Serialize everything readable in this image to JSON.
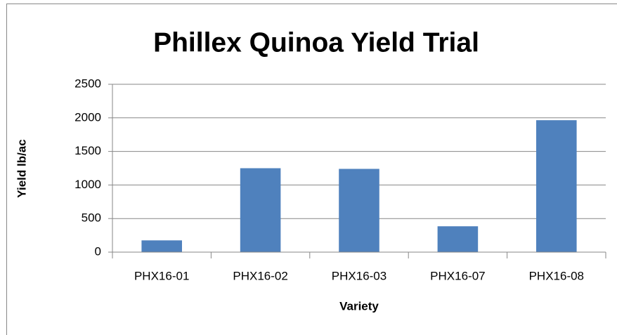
{
  "chart_data": {
    "type": "bar",
    "title": "Phillex Quinoa Yield Trial",
    "x_label": "Variety",
    "y_label": "Yield lb/ac",
    "categories": [
      "PHX16-01",
      "PHX16-02",
      "PHX16-03",
      "PHX16-07",
      "PHX16-08"
    ],
    "values": [
      175,
      1250,
      1240,
      385,
      1965
    ],
    "color": "#4f81bd",
    "ylim": [
      0,
      2500
    ],
    "yticks": [
      0,
      500,
      1000,
      1500,
      2000,
      2500
    ],
    "grid": true
  }
}
